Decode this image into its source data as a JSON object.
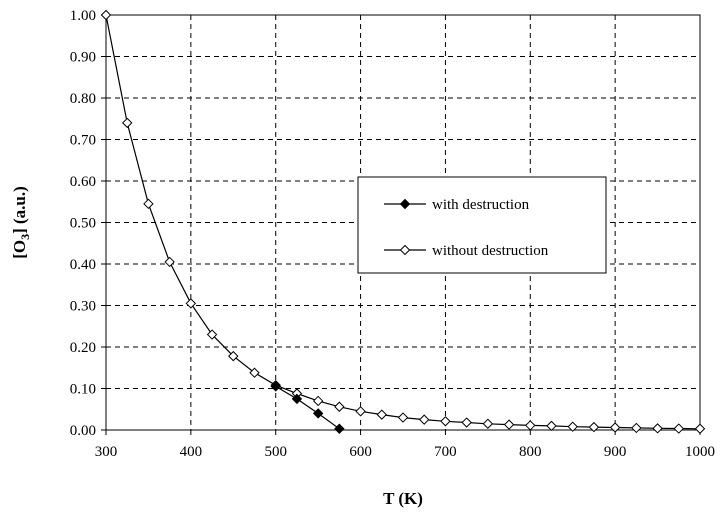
{
  "chart_data": {
    "type": "line",
    "title": "",
    "xlabel": "T (K)",
    "ylabel_main": "[O",
    "ylabel_sub": "3",
    "ylabel_tail": "] (a.u.)",
    "xlim": [
      300,
      1000
    ],
    "ylim": [
      0,
      1
    ],
    "x_ticks": [
      300,
      400,
      500,
      600,
      700,
      800,
      900,
      1000
    ],
    "y_ticks": [
      "0.00",
      "0.10",
      "0.20",
      "0.30",
      "0.40",
      "0.50",
      "0.60",
      "0.70",
      "0.80",
      "0.90",
      "1.00"
    ],
    "grid": true,
    "legend_position": "center-right",
    "series": [
      {
        "name": "with destruction",
        "marker": "filled-diamond",
        "color": "#000000",
        "x": [
          500,
          525,
          550,
          575
        ],
        "y": [
          0.105,
          0.075,
          0.04,
          0.003
        ]
      },
      {
        "name": "without destruction",
        "marker": "open-diamond",
        "color": "#000000",
        "x": [
          300,
          325,
          350,
          375,
          400,
          425,
          450,
          475,
          500,
          525,
          550,
          575,
          600,
          625,
          650,
          675,
          700,
          725,
          750,
          775,
          800,
          825,
          850,
          875,
          900,
          925,
          950,
          975,
          1000
        ],
        "y": [
          1.0,
          0.74,
          0.545,
          0.405,
          0.305,
          0.23,
          0.178,
          0.138,
          0.108,
          0.088,
          0.07,
          0.056,
          0.045,
          0.037,
          0.03,
          0.025,
          0.021,
          0.018,
          0.015,
          0.013,
          0.011,
          0.01,
          0.008,
          0.007,
          0.006,
          0.005,
          0.004,
          0.0035,
          0.003
        ]
      }
    ]
  }
}
